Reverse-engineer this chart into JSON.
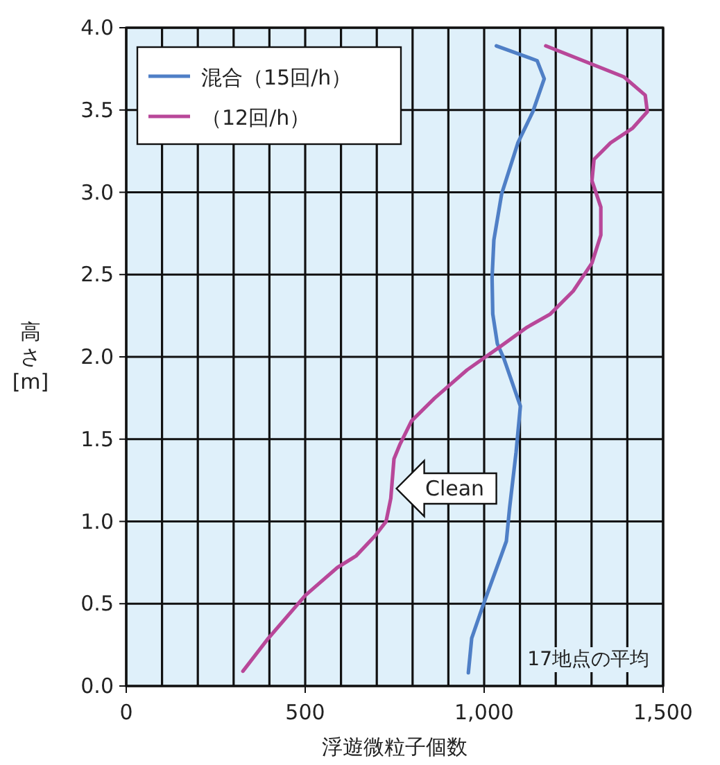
{
  "chart_data": {
    "type": "line",
    "xlabel": "浮遊微粒子個数",
    "ylabel": "高さ [m]",
    "xlim": [
      0,
      1500
    ],
    "ylim": [
      0,
      4
    ],
    "xticks": [
      0,
      {
        "value": 100,
        "label": null
      },
      {
        "value": 200,
        "label": null
      },
      {
        "value": 300,
        "label": null
      },
      {
        "value": 400,
        "label": null
      },
      500,
      {
        "value": 600,
        "label": null
      },
      {
        "value": 700,
        "label": null
      },
      {
        "value": 800,
        "label": null
      },
      {
        "value": 900,
        "label": null
      },
      {
        "value": 1000,
        "label": "1,000"
      },
      {
        "value": 1100,
        "label": null
      },
      {
        "value": 1200,
        "label": null
      },
      {
        "value": 1300,
        "label": null
      },
      {
        "value": 1400,
        "label": null
      },
      {
        "value": 1500,
        "label": "1,500"
      }
    ],
    "yticks": [
      {
        "value": 0,
        "label": "0.0"
      },
      {
        "value": 0.5,
        "label": "0.5"
      },
      {
        "value": 1,
        "label": "1.0"
      },
      {
        "value": 1.5,
        "label": "1.5"
      },
      {
        "value": 2,
        "label": "2.0"
      },
      {
        "value": 2.5,
        "label": "2.5"
      },
      {
        "value": 3,
        "label": "3.0"
      },
      {
        "value": 3.5,
        "label": "3.5"
      },
      {
        "value": 4,
        "label": "4.0"
      }
    ],
    "grid": true,
    "legend": "top left",
    "marker": "none",
    "line_style": "solid",
    "series": [
      {
        "name": "混合（15回/h）",
        "color": "#4f7fc6",
        "x": [
          1034,
          1148,
          1168,
          1136,
          1094,
          1049,
          1027,
          1022,
          1024,
          1037,
          1055,
          1101,
          1089,
          1071,
          1062,
          1049,
          997,
          965,
          956
        ],
        "values": [
          3.89,
          3.8,
          3.69,
          3.49,
          3.3,
          2.99,
          2.71,
          2.48,
          2.26,
          2.08,
          1.99,
          1.7,
          1.42,
          1.08,
          0.88,
          0.8,
          0.49,
          0.29,
          0.08
        ]
      },
      {
        "name": "（12回/h）",
        "color": "#b84799",
        "x": [
          1172,
          1391,
          1450,
          1456,
          1415,
          1353,
          1307,
          1301,
          1326,
          1326,
          1301,
          1249,
          1185,
          1120,
          1043,
          952,
          862,
          797,
          765,
          748,
          739,
          726,
          694,
          642,
          590,
          500,
          397,
          326
        ],
        "values": [
          3.89,
          3.7,
          3.59,
          3.49,
          3.39,
          3.3,
          3.2,
          3.07,
          2.91,
          2.74,
          2.57,
          2.4,
          2.26,
          2.18,
          2.06,
          1.92,
          1.75,
          1.61,
          1.47,
          1.38,
          1.14,
          1.0,
          0.91,
          0.79,
          0.72,
          0.55,
          0.29,
          0.09
        ]
      }
    ],
    "annotations": [
      {
        "text": "Clean",
        "x": 755,
        "y": 1.2
      },
      "17地点の平均"
    ]
  }
}
